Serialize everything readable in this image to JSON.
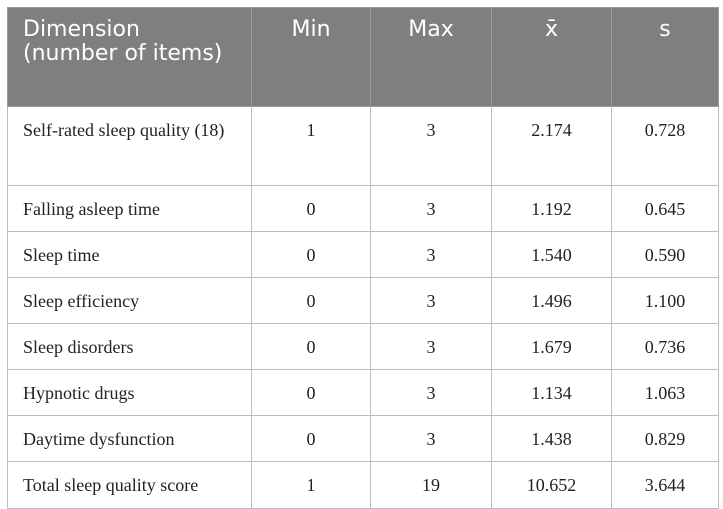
{
  "table": {
    "headers": {
      "dimension": "Dimension (number of items)",
      "min": "Min",
      "max": "Max",
      "mean": "x̄",
      "sd": "s"
    },
    "rows": [
      {
        "dimension": "Self-rated sleep quality (18)",
        "min": "1",
        "max": "3",
        "mean": "2.174",
        "sd": "0.728"
      },
      {
        "dimension": "Falling asleep time",
        "min": "0",
        "max": "3",
        "mean": "1.192",
        "sd": "0.645"
      },
      {
        "dimension": "Sleep time",
        "min": "0",
        "max": "3",
        "mean": "1.540",
        "sd": "0.590"
      },
      {
        "dimension": "Sleep efficiency",
        "min": "0",
        "max": "3",
        "mean": "1.496",
        "sd": "1.100"
      },
      {
        "dimension": "Sleep disorders",
        "min": "0",
        "max": "3",
        "mean": "1.679",
        "sd": "0.736"
      },
      {
        "dimension": "Hypnotic drugs",
        "min": "0",
        "max": "3",
        "mean": "1.134",
        "sd": "1.063"
      },
      {
        "dimension": "Daytime dysfunction",
        "min": "0",
        "max": "3",
        "mean": "1.438",
        "sd": "0.829"
      },
      {
        "dimension": "Total sleep quality score",
        "min": "1",
        "max": "19",
        "mean": "10.652",
        "sd": "3.644"
      }
    ]
  }
}
